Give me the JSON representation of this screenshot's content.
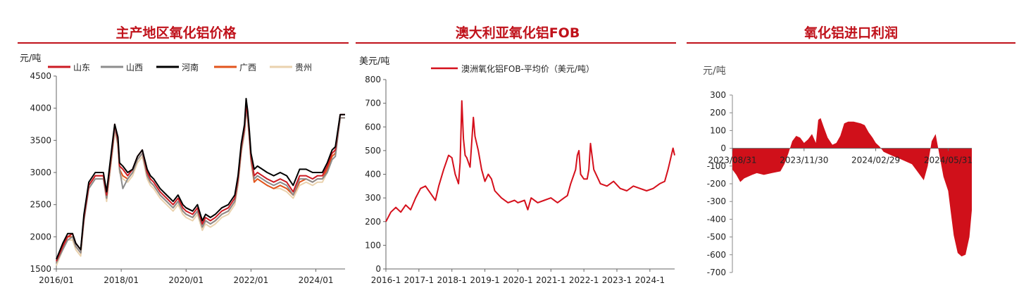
{
  "colors": {
    "title_red": "#c0121b",
    "shandong": "#cc1b23",
    "shanxi": "#8c8c8c",
    "henan": "#000000",
    "guangxi": "#e2541d",
    "guizhou": "#ead2ae",
    "fob": "#d5101c",
    "profit": "#d0101a"
  },
  "chart_data": [
    {
      "type": "line",
      "title": "主产地区氧化铝价格",
      "ylabel": "元/吨",
      "ylim": [
        1500,
        4500
      ],
      "yticks": [
        "1500",
        "2000",
        "2500",
        "3000",
        "3500",
        "4000",
        "4500"
      ],
      "xticks": [
        "2016/01",
        "2018/01",
        "2020/01",
        "2022/01",
        "2024/01"
      ],
      "xrange": [
        2016.0,
        2024.9
      ],
      "legend_position": "top",
      "series": [
        {
          "name": "山东",
          "x": [
            2016.0,
            2016.2,
            2016.35,
            2016.5,
            2016.6,
            2016.75,
            2016.85,
            2017.0,
            2017.2,
            2017.45,
            2017.55,
            2017.75,
            2017.8,
            2017.9,
            2017.95,
            2018.05,
            2018.2,
            2018.35,
            2018.5,
            2018.65,
            2018.8,
            2018.9,
            2019.0,
            2019.2,
            2019.4,
            2019.6,
            2019.75,
            2019.9,
            2020.0,
            2020.2,
            2020.35,
            2020.5,
            2020.6,
            2020.75,
            2020.9,
            2021.1,
            2021.3,
            2021.5,
            2021.6,
            2021.7,
            2021.8,
            2021.85,
            2021.9,
            2021.95,
            2022.0,
            2022.1,
            2022.2,
            2022.35,
            2022.5,
            2022.7,
            2022.9,
            2023.1,
            2023.3,
            2023.5,
            2023.7,
            2023.9,
            2024.05,
            2024.2,
            2024.35,
            2024.5,
            2024.6,
            2024.75,
            2024.9
          ],
          "values": [
            1620,
            1850,
            2000,
            2050,
            1900,
            1800,
            2300,
            2800,
            2950,
            2950,
            2650,
            3500,
            3750,
            3500,
            3100,
            3050,
            2950,
            3050,
            3250,
            3350,
            3000,
            2900,
            2850,
            2700,
            2600,
            2500,
            2600,
            2450,
            2400,
            2350,
            2450,
            2200,
            2300,
            2250,
            2300,
            2400,
            2450,
            2600,
            2900,
            3400,
            3700,
            4050,
            3900,
            3600,
            3250,
            2950,
            3000,
            2950,
            2900,
            2850,
            2900,
            2850,
            2700,
            2950,
            2950,
            2900,
            2950,
            2950,
            3100,
            3300,
            3350,
            3900,
            3900
          ]
        },
        {
          "name": "山西",
          "x": [
            2016.0,
            2016.2,
            2016.35,
            2016.5,
            2016.6,
            2016.75,
            2016.85,
            2017.0,
            2017.2,
            2017.45,
            2017.55,
            2017.75,
            2017.8,
            2017.9,
            2017.95,
            2018.05,
            2018.2,
            2018.35,
            2018.5,
            2018.65,
            2018.8,
            2018.9,
            2019.0,
            2019.2,
            2019.4,
            2019.6,
            2019.75,
            2019.9,
            2020.0,
            2020.2,
            2020.35,
            2020.5,
            2020.6,
            2020.75,
            2020.9,
            2021.1,
            2021.3,
            2021.5,
            2021.6,
            2021.7,
            2021.8,
            2021.85,
            2021.9,
            2021.95,
            2022.0,
            2022.1,
            2022.2,
            2022.35,
            2022.5,
            2022.7,
            2022.9,
            2023.1,
            2023.3,
            2023.5,
            2023.7,
            2023.9,
            2024.05,
            2024.2,
            2024.35,
            2024.5,
            2024.6,
            2024.75,
            2024.9
          ],
          "values": [
            1600,
            1800,
            1950,
            2000,
            1850,
            1750,
            2250,
            2750,
            2900,
            2900,
            2600,
            3450,
            3700,
            3450,
            3050,
            2750,
            2900,
            3000,
            3200,
            3300,
            2950,
            2850,
            2800,
            2650,
            2550,
            2450,
            2550,
            2400,
            2350,
            2300,
            2400,
            2150,
            2250,
            2200,
            2250,
            2350,
            2400,
            2550,
            2850,
            3350,
            3650,
            3950,
            3850,
            3550,
            3200,
            2900,
            2950,
            2900,
            2850,
            2800,
            2850,
            2800,
            2650,
            2900,
            2900,
            2850,
            2900,
            2900,
            3000,
            3200,
            3250,
            3850,
            3850
          ]
        },
        {
          "name": "河南",
          "x": [
            2016.0,
            2016.2,
            2016.35,
            2016.5,
            2016.6,
            2016.75,
            2016.85,
            2017.0,
            2017.2,
            2017.45,
            2017.55,
            2017.75,
            2017.8,
            2017.9,
            2017.95,
            2018.05,
            2018.2,
            2018.35,
            2018.5,
            2018.65,
            2018.8,
            2018.9,
            2019.0,
            2019.2,
            2019.4,
            2019.6,
            2019.75,
            2019.9,
            2020.0,
            2020.2,
            2020.35,
            2020.5,
            2020.6,
            2020.75,
            2020.9,
            2021.1,
            2021.3,
            2021.5,
            2021.6,
            2021.7,
            2021.8,
            2021.85,
            2021.9,
            2021.95,
            2022.0,
            2022.1,
            2022.2,
            2022.35,
            2022.5,
            2022.7,
            2022.9,
            2023.1,
            2023.3,
            2023.5,
            2023.7,
            2023.9,
            2024.05,
            2024.2,
            2024.35,
            2024.5,
            2024.6,
            2024.75,
            2024.9
          ],
          "values": [
            1650,
            1900,
            2050,
            2050,
            1900,
            1800,
            2350,
            2850,
            3000,
            3000,
            2700,
            3550,
            3750,
            3550,
            3150,
            3100,
            3000,
            3050,
            3250,
            3350,
            3050,
            2950,
            2900,
            2750,
            2650,
            2550,
            2650,
            2500,
            2450,
            2400,
            2500,
            2250,
            2350,
            2300,
            2350,
            2450,
            2500,
            2650,
            2950,
            3450,
            3750,
            4150,
            3950,
            3650,
            3300,
            3050,
            3100,
            3050,
            3000,
            2950,
            3000,
            2950,
            2800,
            3050,
            3050,
            3000,
            3000,
            3000,
            3150,
            3350,
            3400,
            3900,
            3900
          ]
        },
        {
          "name": "广西",
          "x": [
            2016.0,
            2016.2,
            2016.35,
            2016.5,
            2016.6,
            2016.75,
            2016.85,
            2017.0,
            2017.2,
            2017.45,
            2017.55,
            2017.75,
            2017.8,
            2017.9,
            2017.95,
            2018.05,
            2018.2,
            2018.35,
            2018.5,
            2018.65,
            2018.8,
            2018.9,
            2019.0,
            2019.2,
            2019.4,
            2019.6,
            2019.75,
            2019.9,
            2020.0,
            2020.2,
            2020.35,
            2020.5,
            2020.6,
            2020.75,
            2020.9,
            2021.1,
            2021.3,
            2021.5,
            2021.6,
            2021.7,
            2021.8,
            2021.85,
            2021.9,
            2021.95,
            2022.0,
            2022.1,
            2022.2,
            2022.35,
            2022.5,
            2022.7,
            2022.9,
            2023.1,
            2023.3,
            2023.5,
            2023.7,
            2023.9,
            2024.05,
            2024.2,
            2024.35,
            2024.5,
            2024.6,
            2024.75,
            2024.9
          ],
          "values": [
            1600,
            1850,
            2000,
            2000,
            1850,
            1750,
            2300,
            2800,
            2950,
            2950,
            2600,
            3450,
            3700,
            3450,
            3050,
            2950,
            2900,
            3000,
            3200,
            3300,
            2950,
            2850,
            2800,
            2650,
            2550,
            2450,
            2550,
            2400,
            2350,
            2300,
            2400,
            2150,
            2250,
            2200,
            2250,
            2350,
            2400,
            2550,
            2850,
            3350,
            3650,
            4000,
            3850,
            3550,
            3200,
            2850,
            2900,
            2850,
            2800,
            2750,
            2800,
            2750,
            2650,
            2850,
            2900,
            2850,
            2900,
            2900,
            3050,
            3250,
            3300,
            3850,
            3850
          ]
        },
        {
          "name": "贵州",
          "x": [
            2016.0,
            2016.2,
            2016.35,
            2016.5,
            2016.6,
            2016.75,
            2016.85,
            2017.0,
            2017.2,
            2017.45,
            2017.55,
            2017.75,
            2017.8,
            2017.9,
            2017.95,
            2018.05,
            2018.2,
            2018.35,
            2018.5,
            2018.65,
            2018.8,
            2018.9,
            2019.0,
            2019.2,
            2019.4,
            2019.6,
            2019.75,
            2019.9,
            2020.0,
            2020.2,
            2020.35,
            2020.5,
            2020.6,
            2020.75,
            2020.9,
            2021.1,
            2021.3,
            2021.5,
            2021.6,
            2021.7,
            2021.8,
            2021.85,
            2021.9,
            2021.95,
            2022.0,
            2022.1,
            2022.2,
            2022.35,
            2022.5,
            2022.7,
            2022.9,
            2023.1,
            2023.3,
            2023.5,
            2023.7,
            2023.9,
            2024.05,
            2024.2,
            2024.35,
            2024.5,
            2024.6,
            2024.75,
            2024.9
          ],
          "values": [
            1550,
            1800,
            1950,
            1950,
            1800,
            1700,
            2250,
            2750,
            2900,
            2900,
            2550,
            3400,
            3650,
            3400,
            3000,
            2900,
            2850,
            2950,
            3150,
            3250,
            2900,
            2800,
            2750,
            2600,
            2500,
            2400,
            2500,
            2350,
            2300,
            2250,
            2350,
            2100,
            2200,
            2150,
            2200,
            2300,
            2350,
            2500,
            2800,
            3300,
            3600,
            3950,
            3800,
            3500,
            3150,
            2850,
            2900,
            2850,
            2800,
            2750,
            2750,
            2700,
            2600,
            2800,
            2850,
            2800,
            2850,
            2850,
            3000,
            3200,
            3250,
            3850,
            3850
          ]
        }
      ]
    },
    {
      "type": "line",
      "title": "澳大利亚氧化铝FOB",
      "ylabel": "美元/吨",
      "ylim": [
        0,
        800
      ],
      "yticks": [
        "0",
        "100",
        "200",
        "300",
        "400",
        "500",
        "600",
        "700",
        "800"
      ],
      "xticks": [
        "2016-1",
        "2017-1",
        "2018-1",
        "2019-1",
        "2020-1",
        "2021-1",
        "2022-1",
        "2023-1",
        "2024-1"
      ],
      "xrange": [
        2016.0,
        2024.75
      ],
      "legend_position": "top",
      "series": [
        {
          "name": "澳洲氧化铝FOB-平均价（美元/吨）",
          "x": [
            2016.0,
            2016.15,
            2016.3,
            2016.45,
            2016.6,
            2016.75,
            2016.9,
            2017.05,
            2017.2,
            2017.35,
            2017.5,
            2017.6,
            2017.75,
            2017.9,
            2018.0,
            2018.1,
            2018.2,
            2018.25,
            2018.3,
            2018.35,
            2018.4,
            2018.45,
            2018.55,
            2018.65,
            2018.7,
            2018.8,
            2018.9,
            2019.0,
            2019.1,
            2019.2,
            2019.3,
            2019.5,
            2019.7,
            2019.9,
            2020.0,
            2020.2,
            2020.3,
            2020.4,
            2020.6,
            2020.8,
            2021.0,
            2021.2,
            2021.4,
            2021.5,
            2021.6,
            2021.7,
            2021.75,
            2021.8,
            2021.85,
            2021.9,
            2022.0,
            2022.1,
            2022.15,
            2022.2,
            2022.3,
            2022.5,
            2022.7,
            2022.9,
            2023.1,
            2023.3,
            2023.5,
            2023.7,
            2023.9,
            2024.1,
            2024.3,
            2024.45,
            2024.55,
            2024.6,
            2024.7,
            2024.75
          ],
          "values": [
            200,
            240,
            260,
            240,
            270,
            250,
            300,
            340,
            350,
            320,
            290,
            350,
            420,
            480,
            470,
            400,
            360,
            450,
            710,
            550,
            480,
            470,
            430,
            640,
            560,
            500,
            420,
            370,
            400,
            380,
            330,
            300,
            280,
            290,
            280,
            290,
            250,
            300,
            280,
            290,
            300,
            280,
            300,
            310,
            360,
            400,
            420,
            480,
            500,
            400,
            380,
            380,
            420,
            530,
            420,
            360,
            350,
            370,
            340,
            330,
            350,
            340,
            330,
            340,
            360,
            370,
            420,
            450,
            510,
            480
          ]
        }
      ]
    },
    {
      "type": "area",
      "title": "氧化铝进口利润",
      "ylabel": "元/吨",
      "ylim": [
        -700,
        300
      ],
      "yticks": [
        "-700",
        "-600",
        "-500",
        "-400",
        "-300",
        "-200",
        "-100",
        "0",
        "100",
        "200",
        "300"
      ],
      "xticks": [
        "2023/08/31",
        "2023/11/30",
        "2024/02/29",
        "2024/05/31"
      ],
      "xrange": [
        "2023-08-31",
        "2024-06-30"
      ],
      "series": [
        {
          "name": "",
          "x": [
            "2023-08-31",
            "2023-09-05",
            "2023-09-10",
            "2023-09-15",
            "2023-09-20",
            "2023-09-25",
            "2023-10-01",
            "2023-10-10",
            "2023-10-20",
            "2023-10-31",
            "2023-11-05",
            "2023-11-10",
            "2023-11-15",
            "2023-11-20",
            "2023-11-25",
            "2023-11-30",
            "2023-12-05",
            "2023-12-10",
            "2023-12-15",
            "2023-12-18",
            "2023-12-21",
            "2023-12-25",
            "2023-12-30",
            "2024-01-05",
            "2024-01-10",
            "2024-01-15",
            "2024-01-20",
            "2024-01-25",
            "2024-02-01",
            "2024-02-10",
            "2024-02-15",
            "2024-02-20",
            "2024-02-25",
            "2024-02-29",
            "2024-03-05",
            "2024-03-10",
            "2024-03-15",
            "2024-03-20",
            "2024-03-25",
            "2024-03-31",
            "2024-04-05",
            "2024-04-10",
            "2024-04-15",
            "2024-04-20",
            "2024-04-25",
            "2024-04-30",
            "2024-05-05",
            "2024-05-10",
            "2024-05-15",
            "2024-05-20",
            "2024-05-25",
            "2024-05-31",
            "2024-06-03",
            "2024-06-07",
            "2024-06-12",
            "2024-06-17",
            "2024-06-22",
            "2024-06-27",
            "2024-06-30"
          ],
          "values": [
            -120,
            -150,
            -190,
            -170,
            -160,
            -150,
            -140,
            -150,
            -140,
            -130,
            -90,
            -30,
            40,
            70,
            60,
            30,
            50,
            80,
            30,
            160,
            170,
            120,
            60,
            20,
            30,
            70,
            140,
            150,
            150,
            140,
            130,
            90,
            60,
            30,
            10,
            -20,
            -30,
            -40,
            -50,
            -60,
            -70,
            -80,
            -90,
            -120,
            -150,
            -180,
            -100,
            40,
            80,
            -40,
            -160,
            -240,
            -350,
            -490,
            -590,
            -610,
            -600,
            -500,
            -350
          ]
        }
      ]
    }
  ]
}
